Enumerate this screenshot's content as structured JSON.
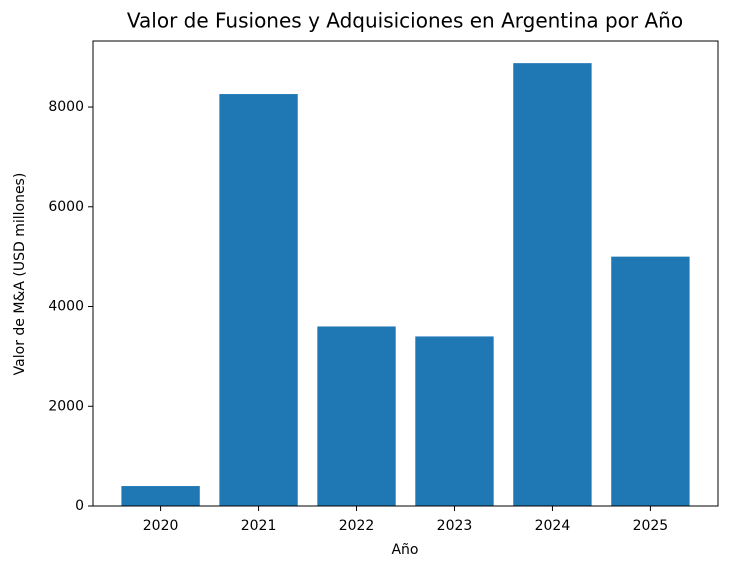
{
  "chart_data": {
    "type": "bar",
    "title": "Valor de Fusiones y Adquisiciones en Argentina por Año",
    "x_label": "Año",
    "y_label": "Valor de M&A (USD millones)",
    "categories": [
      "2020",
      "2021",
      "2022",
      "2023",
      "2024",
      "2025"
    ],
    "values": [
      400,
      8260,
      3600,
      3400,
      8880,
      5000
    ],
    "color": "#1f77b4",
    "ylim": [
      0,
      9324
    ],
    "yticks": [
      0,
      2000,
      4000,
      6000,
      8000
    ],
    "grid": false
  }
}
